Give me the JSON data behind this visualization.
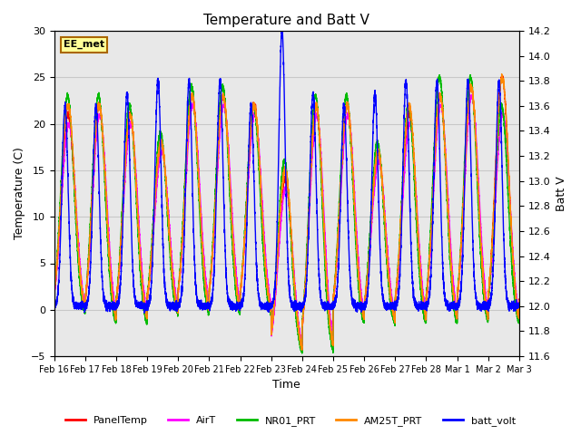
{
  "title": "Temperature and Batt V",
  "xlabel": "Time",
  "ylabel_left": "Temperature (C)",
  "ylabel_right": "Batt V",
  "annotation": "EE_met",
  "ylim_left": [
    -5,
    30
  ],
  "ylim_right": [
    11.6,
    14.2
  ],
  "xtick_labels": [
    "Feb 16",
    "Feb 17",
    "Feb 18",
    "Feb 19",
    "Feb 20",
    "Feb 21",
    "Feb 22",
    "Feb 23",
    "Feb 24",
    "Feb 25",
    "Feb 26",
    "Feb 27",
    "Feb 28",
    "Mar 1",
    "Mar 2",
    "Mar 3"
  ],
  "yticks_left": [
    -5,
    0,
    5,
    10,
    15,
    20,
    25,
    30
  ],
  "yticks_right": [
    11.6,
    11.8,
    12.0,
    12.2,
    12.4,
    12.6,
    12.8,
    13.0,
    13.2,
    13.4,
    13.6,
    13.8,
    14.0,
    14.2
  ],
  "grid_color": "#c8c8c8",
  "bg_color": "#e8e8e8",
  "legend_entries": [
    "PanelTemp",
    "AirT",
    "NR01_PRT",
    "AM25T_PRT",
    "batt_volt"
  ],
  "legend_colors": [
    "#ff0000",
    "#ff00ff",
    "#00bb00",
    "#ff8800",
    "#0000ff"
  ],
  "line_width": 1.0,
  "num_days": 15,
  "annotation_bg": "#ffff99",
  "annotation_border": "#aa6600",
  "daily_max_panel": [
    21,
    22,
    21,
    18,
    23,
    23,
    22,
    14,
    22,
    22,
    17,
    21,
    23,
    24,
    25
  ],
  "daily_min_panel": [
    -1,
    -2,
    -2,
    -1,
    -1,
    -1,
    -1,
    -5,
    -5,
    -2,
    -2,
    -2,
    -2,
    -2,
    -2
  ],
  "daily_max_air": [
    20,
    21,
    20,
    17,
    22,
    22,
    21,
    13,
    21,
    21,
    16,
    20,
    22,
    23,
    21
  ],
  "daily_min_air": [
    -1,
    -2,
    -2,
    -1,
    -1,
    -1,
    -1,
    -5,
    -5,
    -2,
    -2,
    -2,
    -2,
    -2,
    -2
  ],
  "daily_max_nr01": [
    23,
    23,
    22,
    19,
    24,
    24,
    22,
    16,
    23,
    23,
    18,
    22,
    25,
    25,
    22
  ],
  "daily_min_nr01": [
    -1,
    -2,
    -2,
    -1,
    -1,
    -1,
    -1,
    -5,
    -5,
    -2,
    -2,
    -2,
    -2,
    -2,
    -2
  ],
  "daily_max_am25": [
    22,
    22,
    21,
    18,
    23,
    23,
    22,
    15,
    22,
    22,
    17,
    22,
    23,
    24,
    25
  ],
  "daily_min_am25": [
    -1,
    -2,
    -2,
    -1,
    -1,
    -1,
    -1,
    -5,
    -5,
    -2,
    -2,
    -2,
    -2,
    -2,
    -2
  ],
  "batt_night": [
    12.0,
    12.0,
    12.0,
    12.0,
    12.0,
    12.0,
    12.0,
    12.0,
    12.0,
    12.0,
    12.0,
    12.0,
    12.0,
    12.0,
    12.0
  ],
  "batt_day_peak": [
    13.6,
    13.6,
    13.7,
    13.8,
    13.8,
    13.8,
    13.6,
    14.2,
    13.7,
    13.6,
    13.7,
    13.8,
    13.8,
    13.8,
    13.8
  ]
}
